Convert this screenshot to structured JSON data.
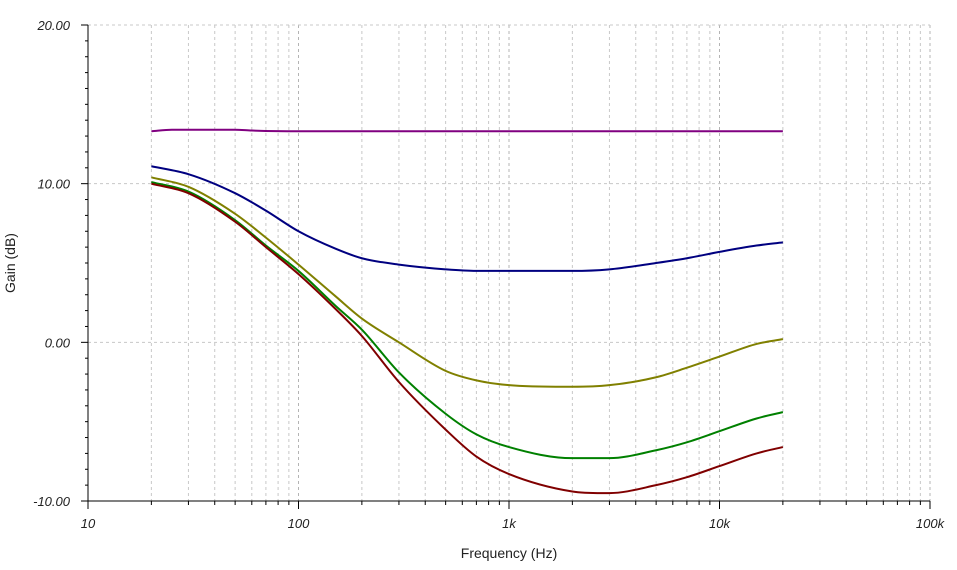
{
  "chart_data": {
    "type": "line",
    "title": "",
    "xlabel": "Frequency (Hz)",
    "ylabel": "Gain (dB)",
    "x_scale": "log",
    "xlim": [
      10,
      100000
    ],
    "ylim": [
      -10,
      20
    ],
    "grid": true,
    "x_tick_values": [
      10,
      100,
      1000,
      10000,
      100000
    ],
    "x_tick_labels": [
      "10",
      "100",
      "1k",
      "10k",
      "100k"
    ],
    "y_tick_values": [
      -10,
      0,
      10,
      20
    ],
    "y_tick_labels": [
      "-10.00",
      "0.00",
      "10.00",
      "20.00"
    ],
    "series": [
      {
        "color": "#800080",
        "x": [
          20,
          25,
          30,
          50,
          60,
          100,
          200,
          500,
          1000,
          2000,
          5000,
          10000,
          20000
        ],
        "y": [
          13.3,
          13.4,
          13.4,
          13.4,
          13.35,
          13.3,
          13.3,
          13.3,
          13.3,
          13.3,
          13.3,
          13.3,
          13.3
        ]
      },
      {
        "color": "#000080",
        "x": [
          20,
          30,
          50,
          70,
          100,
          150,
          200,
          300,
          500,
          700,
          1000,
          2000,
          3000,
          5000,
          7000,
          10000,
          15000,
          20000
        ],
        "y": [
          11.1,
          10.6,
          9.4,
          8.3,
          7.0,
          5.9,
          5.3,
          4.9,
          4.6,
          4.5,
          4.5,
          4.5,
          4.6,
          5.0,
          5.3,
          5.7,
          6.1,
          6.3
        ]
      },
      {
        "color": "#808000",
        "x": [
          20,
          30,
          50,
          70,
          100,
          150,
          200,
          300,
          500,
          700,
          1000,
          2000,
          3000,
          5000,
          7000,
          10000,
          15000,
          20000
        ],
        "y": [
          10.4,
          9.8,
          8.1,
          6.6,
          4.9,
          2.9,
          1.5,
          0,
          -1.8,
          -2.4,
          -2.7,
          -2.8,
          -2.7,
          -2.2,
          -1.6,
          -0.9,
          -0.1,
          0.2
        ]
      },
      {
        "color": "#008000",
        "x": [
          20,
          30,
          50,
          70,
          100,
          150,
          200,
          300,
          500,
          700,
          1000,
          2000,
          3000,
          5000,
          7000,
          10000,
          15000,
          20000
        ],
        "y": [
          10.1,
          9.5,
          7.7,
          6.1,
          4.5,
          2.3,
          0.8,
          -1.9,
          -4.5,
          -5.8,
          -6.6,
          -7.3,
          -7.3,
          -6.8,
          -6.3,
          -5.6,
          -4.8,
          -4.4
        ]
      },
      {
        "color": "#800000",
        "x": [
          20,
          30,
          50,
          70,
          100,
          150,
          200,
          300,
          500,
          700,
          1000,
          2000,
          3000,
          5000,
          7000,
          10000,
          15000,
          20000
        ],
        "y": [
          10.0,
          9.4,
          7.6,
          6.0,
          4.3,
          2.1,
          0.4,
          -2.5,
          -5.5,
          -7.2,
          -8.3,
          -9.4,
          -9.5,
          -9.0,
          -8.5,
          -7.8,
          -7.0,
          -6.6
        ]
      }
    ]
  }
}
